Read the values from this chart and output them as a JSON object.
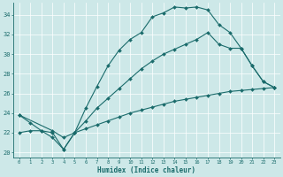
{
  "xlabel": "Humidex (Indice chaleur)",
  "xlim": [
    -0.5,
    23.5
  ],
  "ylim": [
    19.5,
    35.2
  ],
  "yticks": [
    20,
    22,
    24,
    26,
    28,
    30,
    32,
    34
  ],
  "xticks": [
    0,
    1,
    2,
    3,
    4,
    5,
    6,
    7,
    8,
    9,
    10,
    11,
    12,
    13,
    14,
    15,
    16,
    17,
    18,
    19,
    20,
    21,
    22,
    23
  ],
  "bg_color": "#cde8e8",
  "line_color": "#1a6b6b",
  "grid_color": "#ffffff",
  "line1": [
    [
      0,
      23.8
    ],
    [
      1,
      23.0
    ],
    [
      2,
      22.2
    ],
    [
      3,
      21.5
    ],
    [
      4,
      20.3
    ],
    [
      5,
      22.0
    ],
    [
      6,
      24.5
    ],
    [
      7,
      26.7
    ],
    [
      8,
      28.8
    ],
    [
      9,
      30.4
    ],
    [
      10,
      31.5
    ],
    [
      11,
      32.2
    ],
    [
      12,
      33.8
    ],
    [
      13,
      34.2
    ],
    [
      14,
      34.8
    ],
    [
      15,
      34.7
    ],
    [
      16,
      34.8
    ],
    [
      17,
      34.5
    ],
    [
      18,
      33.0
    ],
    [
      19,
      32.2
    ],
    [
      20,
      30.6
    ],
    [
      21,
      28.8
    ],
    [
      22,
      27.2
    ],
    [
      23,
      26.6
    ]
  ],
  "line2": [
    [
      0,
      23.8
    ],
    [
      3,
      22.2
    ],
    [
      4,
      21.5
    ],
    [
      5,
      22.0
    ],
    [
      6,
      23.2
    ],
    [
      7,
      24.5
    ],
    [
      8,
      25.5
    ],
    [
      9,
      26.5
    ],
    [
      10,
      27.5
    ],
    [
      11,
      28.5
    ],
    [
      12,
      29.3
    ],
    [
      13,
      30.0
    ],
    [
      14,
      30.5
    ],
    [
      15,
      31.0
    ],
    [
      16,
      31.5
    ],
    [
      17,
      32.2
    ],
    [
      18,
      31.0
    ],
    [
      19,
      30.6
    ],
    [
      20,
      30.6
    ],
    [
      21,
      28.8
    ],
    [
      22,
      27.2
    ],
    [
      23,
      26.6
    ]
  ],
  "line3": [
    [
      0,
      22.0
    ],
    [
      1,
      22.2
    ],
    [
      2,
      22.2
    ],
    [
      3,
      22.0
    ],
    [
      4,
      20.3
    ],
    [
      5,
      22.0
    ],
    [
      6,
      22.4
    ],
    [
      7,
      22.8
    ],
    [
      8,
      23.2
    ],
    [
      9,
      23.6
    ],
    [
      10,
      24.0
    ],
    [
      11,
      24.3
    ],
    [
      12,
      24.6
    ],
    [
      13,
      24.9
    ],
    [
      14,
      25.2
    ],
    [
      15,
      25.4
    ],
    [
      16,
      25.6
    ],
    [
      17,
      25.8
    ],
    [
      18,
      26.0
    ],
    [
      19,
      26.2
    ],
    [
      20,
      26.3
    ],
    [
      21,
      26.4
    ],
    [
      22,
      26.5
    ],
    [
      23,
      26.6
    ]
  ]
}
